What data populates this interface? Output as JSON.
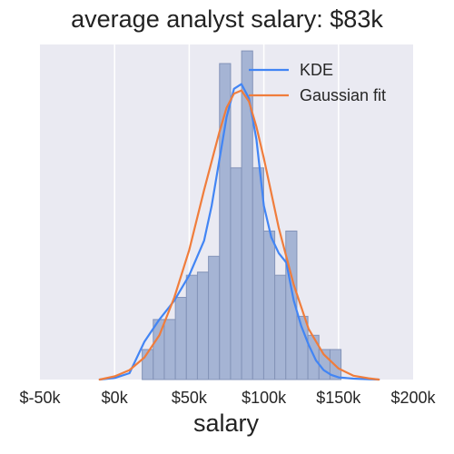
{
  "chart_data": {
    "type": "histogram",
    "title": "average analyst salary: $83k",
    "xlabel": "salary",
    "ylabel": "",
    "xlim": [
      -50000,
      200000
    ],
    "ylim": [
      0,
      1.0
    ],
    "x_ticks": [
      -50000,
      0,
      50000,
      100000,
      150000,
      200000
    ],
    "x_tick_labels": [
      "$-50k",
      "$0k",
      "$50k",
      "$100k",
      "$150k",
      "$200k"
    ],
    "grid": true,
    "legend_position": "top-right",
    "bin_width": 7400,
    "histogram": {
      "bin_starts": [
        18500,
        25900,
        33300,
        40700,
        48100,
        55500,
        62900,
        70300,
        77700,
        85100,
        92500,
        99900,
        107300,
        114700,
        122100,
        129500,
        136900,
        144300
      ],
      "heights": [
        0.095,
        0.19,
        0.19,
        0.26,
        0.33,
        0.34,
        0.39,
        1.0,
        0.67,
        1.04,
        0.67,
        0.47,
        0.33,
        0.47,
        0.2,
        0.14,
        0.095,
        0.095
      ]
    },
    "series": [
      {
        "name": "KDE",
        "color": "#4285f4",
        "x": [
          -10000,
          0,
          10000,
          20000,
          30000,
          40000,
          50000,
          60000,
          65000,
          70000,
          75000,
          80000,
          85000,
          90000,
          95000,
          100000,
          105000,
          110000,
          115000,
          120000,
          125000,
          130000,
          135000,
          140000,
          145000,
          150000,
          160000,
          170000,
          177000
        ],
        "y": [
          0.0,
          0.005,
          0.02,
          0.12,
          0.19,
          0.25,
          0.33,
          0.44,
          0.55,
          0.69,
          0.83,
          0.92,
          0.935,
          0.89,
          0.76,
          0.55,
          0.45,
          0.4,
          0.37,
          0.25,
          0.17,
          0.11,
          0.06,
          0.03,
          0.015,
          0.007,
          0.003,
          0.001,
          0.0
        ]
      },
      {
        "name": "Gaussian fit",
        "color": "#f07d3c",
        "x": [
          -10000,
          0,
          10000,
          20000,
          30000,
          40000,
          50000,
          60000,
          70000,
          75000,
          80000,
          85000,
          90000,
          95000,
          100000,
          110000,
          120000,
          130000,
          140000,
          150000,
          160000,
          170000,
          177000
        ],
        "y": [
          0.0,
          0.01,
          0.03,
          0.07,
          0.14,
          0.26,
          0.41,
          0.6,
          0.78,
          0.86,
          0.905,
          0.915,
          0.88,
          0.8,
          0.7,
          0.48,
          0.3,
          0.16,
          0.08,
          0.035,
          0.012,
          0.004,
          0.0
        ]
      }
    ]
  }
}
